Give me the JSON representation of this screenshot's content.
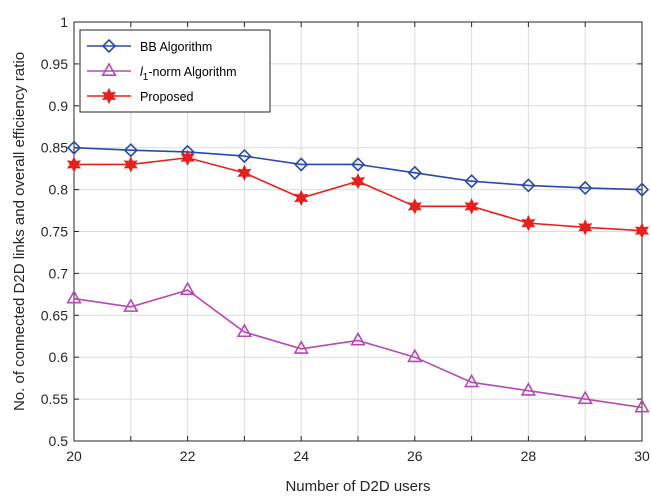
{
  "chart_data": {
    "type": "line",
    "xlabel": "Number of D2D users",
    "ylabel": "No. of connected D2D links and overall efficiency ratio",
    "xlim": [
      20,
      30
    ],
    "ylim": [
      0.5,
      1
    ],
    "xticks": [
      "20",
      "22",
      "24",
      "26",
      "28",
      "30"
    ],
    "yticks": [
      "0.5",
      "0.55",
      "0.6",
      "0.65",
      "0.7",
      "0.75",
      "0.8",
      "0.85",
      "0.9",
      "0.95",
      "1"
    ],
    "grid": true,
    "legend_position": "top-left",
    "x": [
      20,
      21,
      22,
      23,
      24,
      25,
      26,
      27,
      28,
      29,
      30
    ],
    "series": [
      {
        "name": "BB Algorithm",
        "color": "#2a4aa8",
        "marker": "diamond",
        "values": [
          0.85,
          0.847,
          0.845,
          0.84,
          0.83,
          0.83,
          0.82,
          0.81,
          0.805,
          0.802,
          0.8
        ]
      },
      {
        "name": "l1-norm Algorithm",
        "name_parts": {
          "base": "l",
          "sub": "1",
          "suffix": "-norm Algorithm"
        },
        "color": "#b548b5",
        "marker": "triangle",
        "values": [
          0.67,
          0.66,
          0.68,
          0.63,
          0.61,
          0.62,
          0.6,
          0.57,
          0.56,
          0.55,
          0.54
        ]
      },
      {
        "name": "Proposed",
        "color": "#e8201c",
        "marker": "hexagram",
        "values": [
          0.83,
          0.83,
          0.838,
          0.82,
          0.79,
          0.81,
          0.78,
          0.78,
          0.76,
          0.755,
          0.751
        ]
      }
    ]
  }
}
